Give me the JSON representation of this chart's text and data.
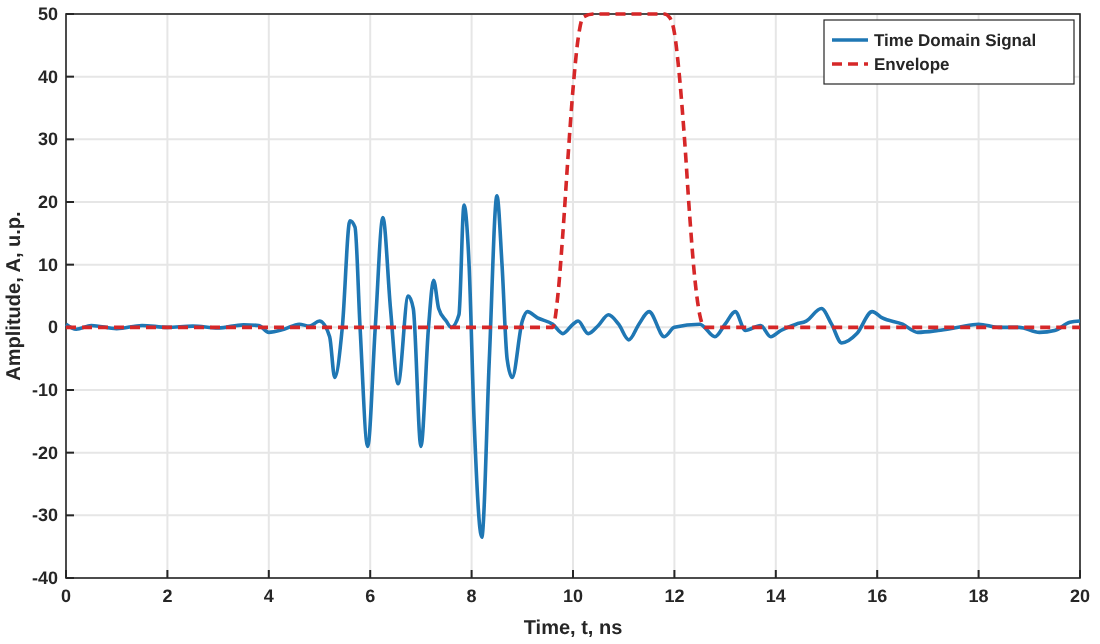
{
  "chart_data": {
    "type": "line",
    "xlabel": "Time, t, ns",
    "ylabel": "Amplitude, A, u.p.",
    "xlim": [
      0,
      20
    ],
    "ylim": [
      -40,
      50
    ],
    "xticks": [
      0,
      2,
      4,
      6,
      8,
      10,
      12,
      14,
      16,
      18,
      20
    ],
    "yticks": [
      -40,
      -30,
      -20,
      -10,
      0,
      10,
      20,
      30,
      40,
      50
    ],
    "grid": true,
    "legend": "top right",
    "series": [
      {
        "name": "Time Domain Signal",
        "color": "#1f77b4",
        "line_style": "solid",
        "x": [
          0,
          0.2,
          0.5,
          1,
          1.5,
          2,
          2.5,
          3,
          3.5,
          3.8,
          4,
          4.3,
          4.6,
          4.8,
          5,
          5.2,
          5.3,
          5.45,
          5.6,
          5.7,
          5.8,
          5.95,
          6.1,
          6.25,
          6.4,
          6.55,
          6.75,
          6.85,
          7,
          7.15,
          7.25,
          7.35,
          7.5,
          7.6,
          7.75,
          7.85,
          7.95,
          8.05,
          8.2,
          8.35,
          8.5,
          8.6,
          8.7,
          8.8,
          9,
          9.1,
          9.3,
          9.6,
          9.8,
          10,
          10.1,
          10.3,
          10.5,
          10.7,
          10.9,
          11.1,
          11.3,
          11.5,
          11.8,
          12,
          12.5,
          12.8,
          13,
          13.2,
          13.4,
          13.7,
          13.9,
          14.1,
          14.4,
          14.6,
          14.9,
          15.1,
          15.3,
          15.6,
          15.9,
          16.1,
          16.5,
          16.8,
          17.2,
          17.6,
          18,
          18.4,
          18.8,
          19.2,
          19.5,
          19.8,
          20
        ],
        "values": [
          0.5,
          -0.3,
          0.3,
          -0.2,
          0.3,
          0,
          0.2,
          -0.1,
          0.4,
          0.3,
          -0.8,
          -0.3,
          0.5,
          0.2,
          1,
          -1.5,
          -8,
          0,
          17,
          16,
          0,
          -19,
          0,
          17.5,
          3,
          -9,
          5,
          3,
          -19,
          0,
          7.5,
          3,
          1,
          0,
          2,
          19.5,
          10,
          -15,
          -33.5,
          -5,
          21,
          10,
          -5,
          -8,
          1,
          2.5,
          1.5,
          0.5,
          -1,
          0.5,
          1,
          -1,
          0.3,
          2,
          0.5,
          -2,
          0.5,
          2.5,
          -1.5,
          0,
          0.5,
          -1.5,
          0.5,
          2.5,
          -0.5,
          0.3,
          -1.5,
          -0.5,
          0.5,
          1,
          3,
          0.5,
          -2.5,
          -1,
          2.5,
          1.5,
          0.5,
          -0.8,
          -0.5,
          0,
          0.5,
          0,
          0,
          -0.8,
          -0.5,
          0.8,
          1
        ]
      },
      {
        "name": "Envelope",
        "color": "#d62728",
        "line_style": "dashed",
        "x": [
          0,
          9.6,
          9.7,
          9.8,
          9.9,
          10,
          10.1,
          10.2,
          10.4,
          11.8,
          11.9,
          12,
          12.1,
          12.2,
          12.3,
          12.4,
          12.5,
          12.6,
          20
        ],
        "values": [
          0,
          0,
          5,
          15,
          27,
          38,
          46,
          49.5,
          50,
          50,
          49.5,
          47,
          40,
          30,
          18,
          8,
          2,
          0,
          0
        ]
      }
    ]
  }
}
